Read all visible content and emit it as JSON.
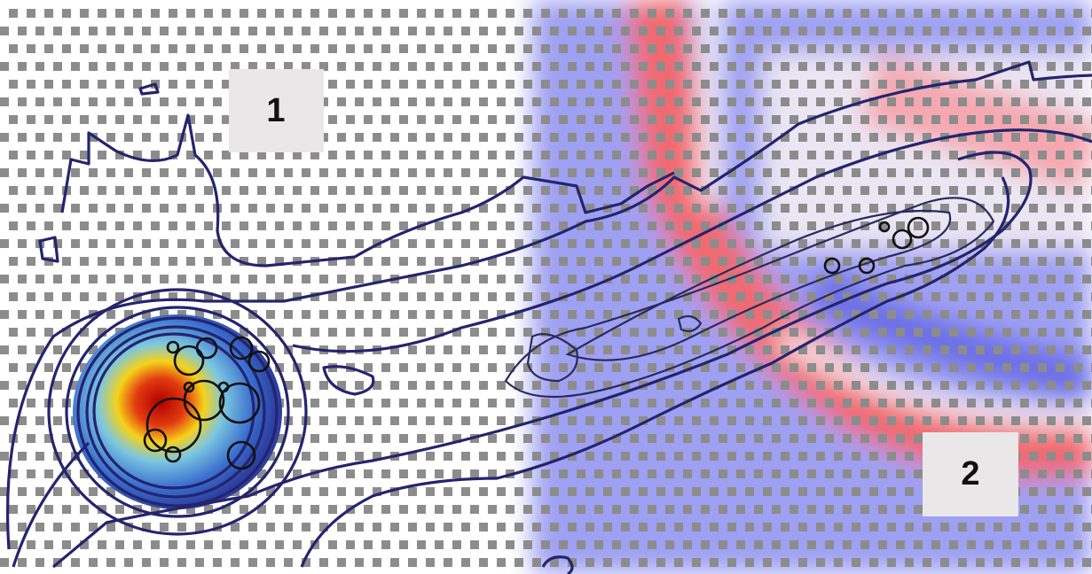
{
  "panels": [
    {
      "label": "1"
    },
    {
      "label": "2"
    }
  ]
}
